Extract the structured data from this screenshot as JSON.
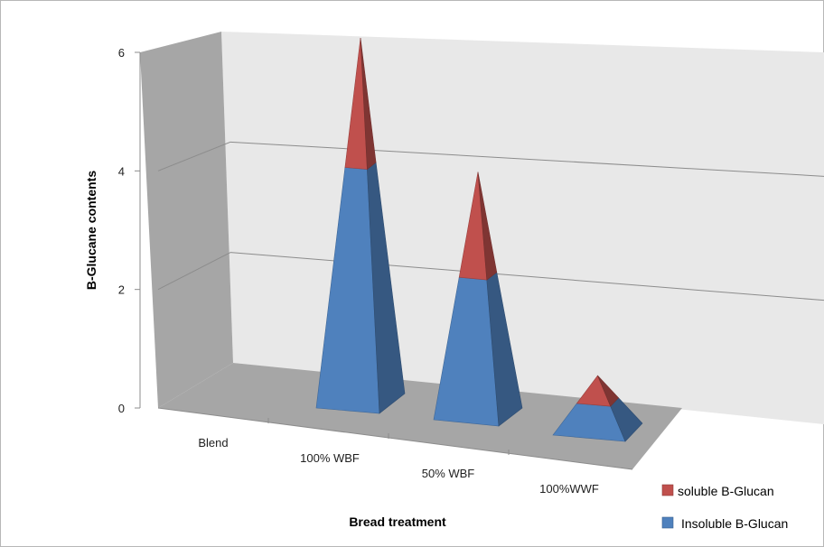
{
  "chart_data": {
    "type": "bar",
    "variant": "3d-stacked-pyramid",
    "title": "",
    "xlabel": "Bread treatment",
    "ylabel": "B-Glucane contents",
    "ylim": [
      0,
      6
    ],
    "yticks": [
      "0",
      "2",
      "4",
      "6"
    ],
    "categories": [
      "Blend",
      "100% WBF",
      "50% WBF",
      "100%WWF"
    ],
    "series": [
      {
        "name": "Insoluble B-Glucan",
        "values": [
          0,
          3.9,
          2.3,
          0.48
        ],
        "color": "#4f81bd"
      },
      {
        "name": "soluble B-Glucan",
        "values": [
          0,
          2.1,
          1.7,
          0.42
        ],
        "color": "#c0504d"
      }
    ],
    "legend_order": [
      "soluble B-Glucan",
      "Insoluble B-Glucan"
    ],
    "legend_position": "bottom-right",
    "grid": true
  }
}
